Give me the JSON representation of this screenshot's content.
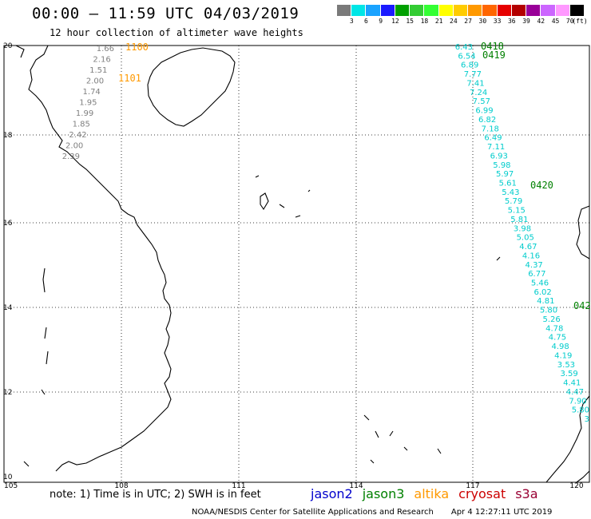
{
  "header": {
    "title": "00:00 – 11:59 UTC 04/03/2019",
    "subtitle": "12 hour collection of altimeter wave heights"
  },
  "legend": {
    "unit": "(ft)",
    "stops": [
      {
        "label": "3",
        "color": "#7a7a7a"
      },
      {
        "label": "6",
        "color": "#00e6e6"
      },
      {
        "label": "9",
        "color": "#1aa3ff"
      },
      {
        "label": "12",
        "color": "#1a1aff"
      },
      {
        "label": "15",
        "color": "#00a000"
      },
      {
        "label": "18",
        "color": "#33cc33"
      },
      {
        "label": "21",
        "color": "#33ff33"
      },
      {
        "label": "24",
        "color": "#ffff00"
      },
      {
        "label": "27",
        "color": "#ffcc00"
      },
      {
        "label": "30",
        "color": "#ff9900"
      },
      {
        "label": "33",
        "color": "#ff6600"
      },
      {
        "label": "36",
        "color": "#e60000"
      },
      {
        "label": "39",
        "color": "#b30000"
      },
      {
        "label": "42",
        "color": "#990099"
      },
      {
        "label": "45",
        "color": "#cc66ff"
      },
      {
        "label": "70",
        "color": "#ff99ff"
      },
      {
        "label": "",
        "color": "#000000"
      }
    ]
  },
  "map": {
    "lat_labels": [
      "20",
      "18",
      "16",
      "14",
      "12",
      "10"
    ],
    "lon_labels": [
      "105",
      "108",
      "111",
      "114",
      "117",
      "120"
    ],
    "track_west": {
      "color": "#808080",
      "values": [
        "1.66",
        "2.16",
        "1.51",
        "2.00",
        "1.74",
        "1.95",
        "1.99",
        "1.85",
        "2.42",
        "2.00",
        "2.39"
      ],
      "times": [
        {
          "label": "1100",
          "color": "#ff9900"
        },
        {
          "label": "1101",
          "color": "#ff9900"
        }
      ]
    },
    "track_east": {
      "color": "#00cccc",
      "values": [
        "6.43",
        "6.54",
        "6.89",
        "7.77",
        "7.41",
        "7.24",
        "7.57",
        "6.99",
        "6.82",
        "7.18",
        "6.49",
        "7.11",
        "6.93",
        "5.98",
        "5.97",
        "5.61",
        "5.43",
        "5.79",
        "5.15",
        "5.81",
        "3.98",
        "5.05",
        "4.67",
        "4.16",
        "4.37",
        "6.77",
        "5.46",
        "6.02",
        "4.81",
        "5.80",
        "5.26",
        "4.78",
        "4.75",
        "4.98",
        "4.19",
        "3.53",
        "3.59",
        "4.41",
        "4.47",
        "7.90",
        "5.80",
        "3"
      ],
      "times": [
        {
          "label": "0418",
          "color": "#008000"
        },
        {
          "label": "0419",
          "color": "#008000"
        },
        {
          "label": "0420",
          "color": "#008000"
        },
        {
          "label": "042",
          "color": "#008000"
        }
      ]
    }
  },
  "footer": {
    "note": "note: 1) Time is in UTC; 2) SWH is in feet",
    "satellites": [
      {
        "name": "jason2",
        "color": "#0000cc"
      },
      {
        "name": "jason3",
        "color": "#008000"
      },
      {
        "name": "altika",
        "color": "#ff9900"
      },
      {
        "name": "cryosat",
        "color": "#cc0000"
      },
      {
        "name": "s3a",
        "color": "#990033"
      }
    ],
    "credit": "NOAA/NESDIS Center for Satellite Applications and Research",
    "timestamp": "Apr  4 12:27:11 UTC 2019"
  }
}
